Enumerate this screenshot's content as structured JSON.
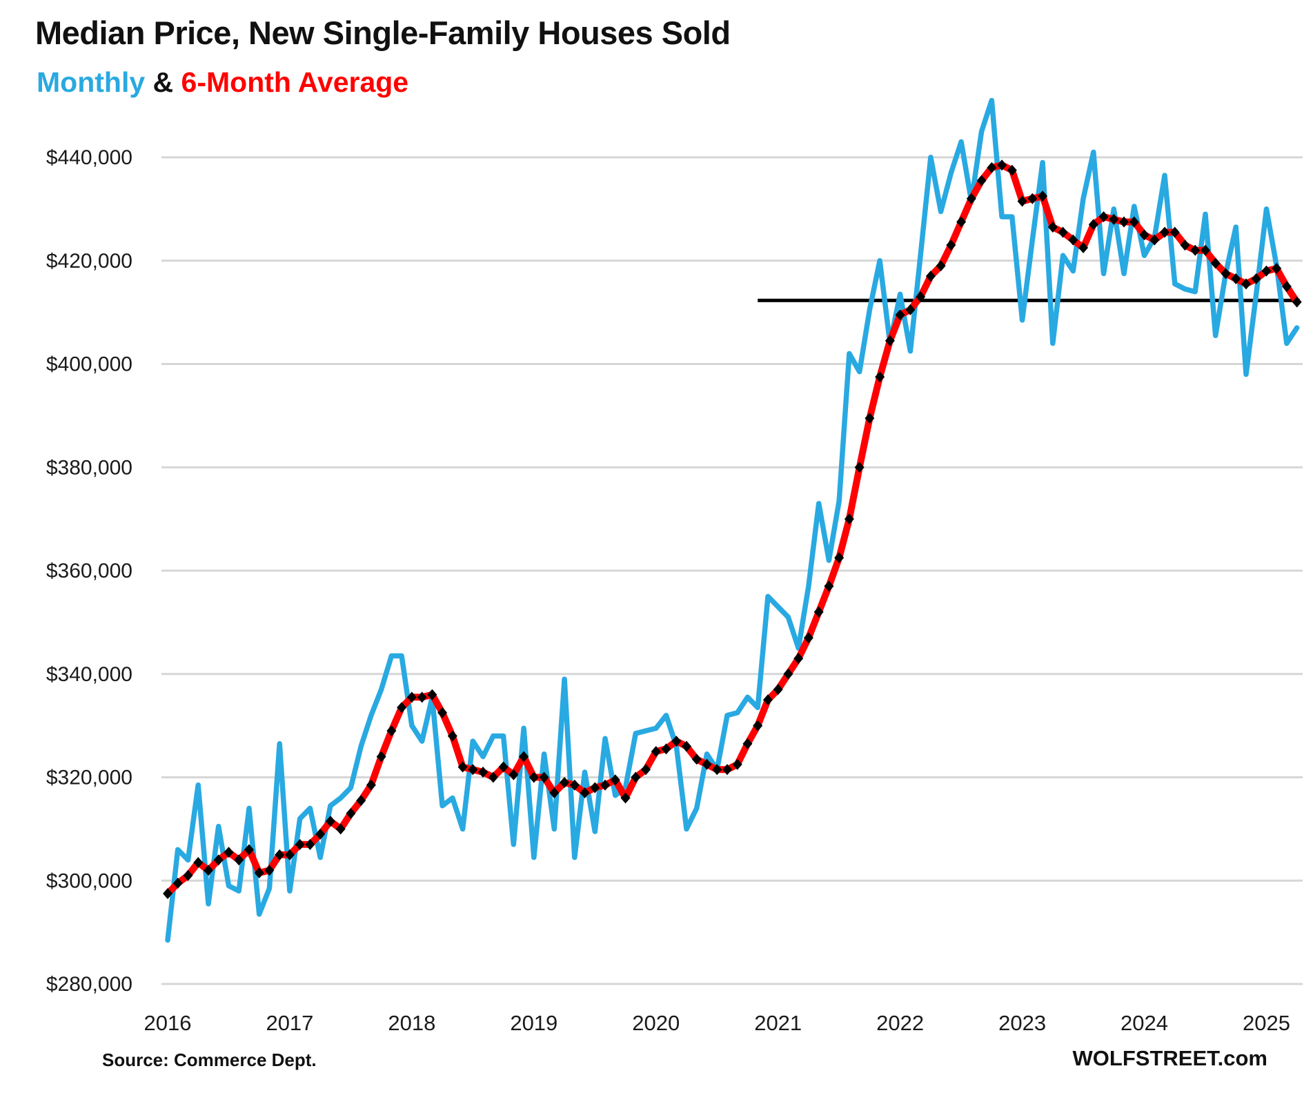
{
  "title": "Median Price, New Single-Family Houses Sold",
  "subtitle": {
    "monthly_label": "Monthly",
    "separator": " & ",
    "average_label": "6-Month Average"
  },
  "source_note": "Source: Commerce Dept.",
  "watermark": "WOLFSTREET.com",
  "colors": {
    "monthly": "#29A9E1",
    "average": "#FF0000",
    "marker": "#000000",
    "reference_line": "#000000",
    "grid": "#D6D6D6",
    "text": "#1a1a1a"
  },
  "chart_data": {
    "type": "line",
    "title": "Median Price, New Single-Family Houses Sold",
    "x_start": "2016-01",
    "x_end": "2025-04",
    "x_tick_labels": [
      "2016",
      "2017",
      "2018",
      "2019",
      "2020",
      "2021",
      "2022",
      "2023",
      "2024",
      "2025"
    ],
    "y_tick_values": [
      280000,
      300000,
      320000,
      340000,
      360000,
      380000,
      400000,
      420000,
      440000
    ],
    "y_tick_labels": [
      "$280,000",
      "$300,000",
      "$320,000",
      "$340,000",
      "$360,000",
      "$380,000",
      "$400,000",
      "$420,000",
      "$440,000"
    ],
    "ylim": [
      280000,
      452000
    ],
    "grid": "horizontal-only",
    "legend_position": "subtitle",
    "series": [
      {
        "name": "Monthly",
        "values": [
          288500,
          306000,
          304000,
          318500,
          295500,
          310500,
          299000,
          298000,
          314000,
          293500,
          298500,
          326500,
          298000,
          312000,
          314000,
          304500,
          314500,
          316000,
          318000,
          326000,
          332000,
          337000,
          343500,
          343500,
          330000,
          327000,
          335500,
          314500,
          316000,
          310000,
          327000,
          324000,
          328000,
          328000,
          307000,
          329500,
          304500,
          324500,
          310000,
          339000,
          304500,
          321000,
          309500,
          327500,
          316500,
          318000,
          328500,
          329000,
          329500,
          332000,
          326000,
          310000,
          314000,
          324500,
          321500,
          332000,
          332500,
          335500,
          333500,
          355000,
          353000,
          351000,
          345000,
          357000,
          373000,
          362000,
          373500,
          402000,
          398500,
          410500,
          420000,
          404000,
          413500,
          402500,
          421000,
          440000,
          429500,
          437000,
          443000,
          431500,
          445000,
          451000,
          428500,
          428500,
          408500,
          424000,
          439000,
          404000,
          421000,
          418000,
          432000,
          441000,
          417500,
          430000,
          417500,
          430500,
          421000,
          424500,
          436500,
          415500,
          414500,
          414000,
          429000,
          405500,
          417500,
          426500,
          398000,
          413500,
          430000,
          419000,
          404000,
          407000
        ]
      },
      {
        "name": "6-Month Average",
        "values": [
          297500,
          299500,
          301000,
          303500,
          302000,
          304000,
          305500,
          304000,
          306000,
          301500,
          302000,
          305000,
          305000,
          307000,
          307000,
          309000,
          311500,
          310000,
          313000,
          315500,
          318500,
          324000,
          329000,
          333500,
          335500,
          335500,
          336000,
          332500,
          328000,
          322000,
          321500,
          321000,
          320000,
          322000,
          320500,
          324000,
          320000,
          320000,
          317000,
          319000,
          318500,
          317000,
          318000,
          318500,
          319500,
          316000,
          320000,
          321500,
          325000,
          325500,
          327000,
          326000,
          323500,
          322500,
          321500,
          321500,
          322500,
          326500,
          330000,
          335000,
          337000,
          340000,
          343000,
          347000,
          352000,
          357000,
          362500,
          370000,
          380000,
          389500,
          397500,
          404500,
          409500,
          410500,
          413000,
          417000,
          419000,
          423000,
          427500,
          432000,
          435500,
          438000,
          438500,
          437500,
          431500,
          432000,
          432500,
          426500,
          425500,
          424000,
          422500,
          427000,
          428500,
          428000,
          427500,
          427500,
          425000,
          424000,
          425500,
          425500,
          423000,
          422000,
          422000,
          419500,
          417500,
          416500,
          415500,
          416500,
          418000,
          418500,
          415000,
          412000
        ]
      }
    ],
    "reference_line": {
      "value": 412300,
      "start_month_index": 58,
      "note": "horizontal black line from late 2020 to latest 6-month average value"
    }
  }
}
